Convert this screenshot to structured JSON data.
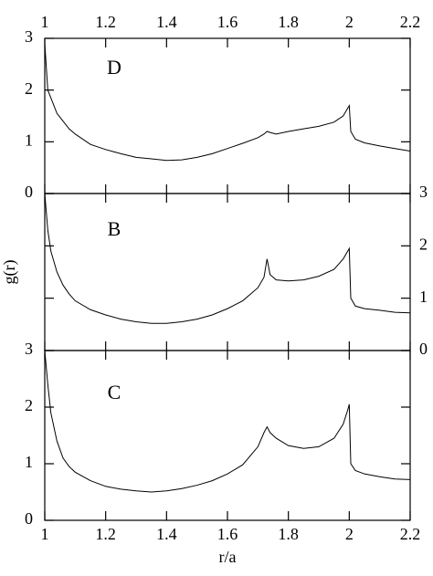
{
  "chart_data": [
    {
      "type": "line",
      "annotation": "D",
      "xlim": [
        1,
        2.2
      ],
      "ylim": [
        0,
        3
      ],
      "xticks": [
        1,
        1.2,
        1.4,
        1.6,
        1.8,
        2,
        2.2
      ],
      "yticks": [
        0,
        1,
        2,
        3
      ],
      "xtick_labels": "top",
      "ytick_labels": "left",
      "color": "#000000",
      "x": [
        1.0,
        1.01,
        1.02,
        1.04,
        1.06,
        1.08,
        1.1,
        1.15,
        1.2,
        1.25,
        1.3,
        1.35,
        1.4,
        1.45,
        1.5,
        1.55,
        1.6,
        1.65,
        1.7,
        1.72,
        1.73,
        1.74,
        1.76,
        1.8,
        1.85,
        1.9,
        1.95,
        1.98,
        1.995,
        2.0,
        2.005,
        2.02,
        2.05,
        2.1,
        2.15,
        2.2
      ],
      "values": [
        2.9,
        2.0,
        1.85,
        1.55,
        1.4,
        1.25,
        1.15,
        0.95,
        0.85,
        0.77,
        0.7,
        0.67,
        0.64,
        0.65,
        0.7,
        0.77,
        0.87,
        0.97,
        1.08,
        1.15,
        1.2,
        1.18,
        1.15,
        1.2,
        1.25,
        1.3,
        1.38,
        1.5,
        1.65,
        1.7,
        1.2,
        1.05,
        0.98,
        0.92,
        0.87,
        0.82
      ]
    },
    {
      "type": "line",
      "annotation": "B",
      "ylabel": "g(r)",
      "xlim": [
        1,
        2.2
      ],
      "ylim": [
        0,
        3
      ],
      "xticks": [
        1,
        1.2,
        1.4,
        1.6,
        1.8,
        2,
        2.2
      ],
      "yticks": [
        0,
        1,
        2,
        3
      ],
      "xtick_labels": "none",
      "ytick_labels": "right",
      "color": "#000000",
      "x": [
        1.0,
        1.01,
        1.02,
        1.04,
        1.06,
        1.08,
        1.1,
        1.15,
        1.2,
        1.25,
        1.3,
        1.35,
        1.4,
        1.45,
        1.5,
        1.55,
        1.6,
        1.65,
        1.7,
        1.72,
        1.73,
        1.74,
        1.76,
        1.8,
        1.85,
        1.9,
        1.95,
        1.98,
        1.995,
        2.0,
        2.005,
        2.02,
        2.05,
        2.1,
        2.15,
        2.2
      ],
      "values": [
        3.0,
        2.3,
        1.9,
        1.5,
        1.25,
        1.08,
        0.95,
        0.78,
        0.68,
        0.6,
        0.55,
        0.52,
        0.52,
        0.55,
        0.6,
        0.68,
        0.8,
        0.95,
        1.2,
        1.4,
        1.75,
        1.45,
        1.35,
        1.33,
        1.35,
        1.42,
        1.55,
        1.75,
        1.9,
        1.95,
        1.0,
        0.85,
        0.8,
        0.77,
        0.73,
        0.72
      ]
    },
    {
      "type": "line",
      "annotation": "C",
      "xlabel": "r/a",
      "xlim": [
        1,
        2.2
      ],
      "ylim": [
        0,
        3
      ],
      "xticks": [
        1,
        1.2,
        1.4,
        1.6,
        1.8,
        2,
        2.2
      ],
      "yticks": [
        0,
        1,
        2,
        3
      ],
      "xtick_labels": "bottom",
      "ytick_labels": "left",
      "color": "#000000",
      "x": [
        1.0,
        1.01,
        1.02,
        1.04,
        1.06,
        1.08,
        1.1,
        1.15,
        1.2,
        1.25,
        1.3,
        1.35,
        1.4,
        1.45,
        1.5,
        1.55,
        1.6,
        1.65,
        1.7,
        1.72,
        1.73,
        1.74,
        1.76,
        1.8,
        1.85,
        1.9,
        1.95,
        1.98,
        1.995,
        2.0,
        2.005,
        2.02,
        2.05,
        2.1,
        2.15,
        2.2
      ],
      "values": [
        3.0,
        2.4,
        1.9,
        1.4,
        1.1,
        0.95,
        0.85,
        0.7,
        0.6,
        0.55,
        0.52,
        0.5,
        0.52,
        0.56,
        0.62,
        0.7,
        0.82,
        0.98,
        1.3,
        1.55,
        1.65,
        1.55,
        1.45,
        1.32,
        1.27,
        1.3,
        1.45,
        1.7,
        1.95,
        2.05,
        1.0,
        0.88,
        0.82,
        0.77,
        0.73,
        0.72
      ]
    }
  ]
}
